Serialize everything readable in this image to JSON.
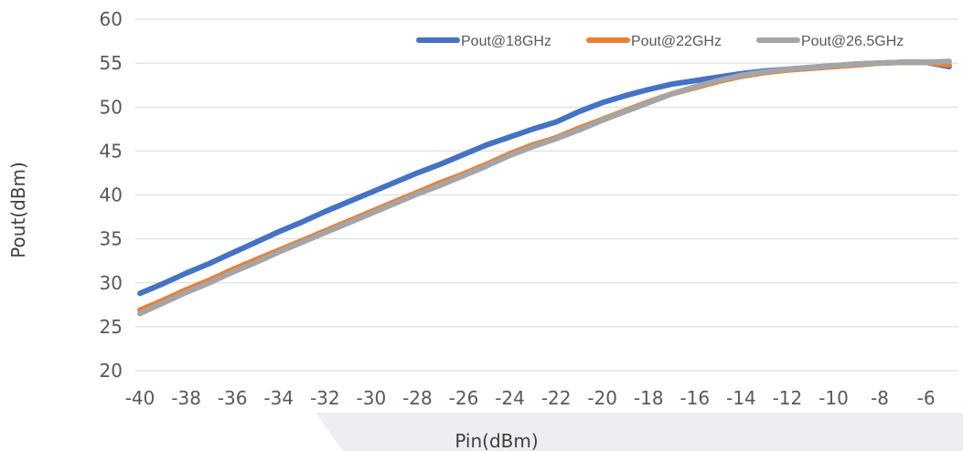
{
  "chart_data": {
    "type": "line",
    "title": "",
    "xlabel": "Pin(dBm)",
    "ylabel": "Pout(dBm)",
    "x": [
      -40,
      -39,
      -38,
      -37,
      -36,
      -35,
      -34,
      -33,
      -32,
      -31,
      -30,
      -29,
      -28,
      -27,
      -26,
      -25,
      -24,
      -23,
      -22,
      -21,
      -20,
      -19,
      -18,
      -17,
      -16,
      -15,
      -14,
      -13,
      -12,
      -11,
      -10,
      -9,
      -8,
      -7,
      -6,
      -5
    ],
    "x_ticks": [
      -40,
      -38,
      -36,
      -34,
      -32,
      -30,
      -28,
      -26,
      -24,
      -22,
      -20,
      -18,
      -16,
      -14,
      -12,
      -10,
      -8,
      -6
    ],
    "y_ticks": [
      20,
      25,
      30,
      35,
      40,
      45,
      50,
      55,
      60
    ],
    "xlim": [
      -40.2,
      -4.6
    ],
    "ylim": [
      20,
      60
    ],
    "grid": "horizontal",
    "legend_position": "top-right",
    "series": [
      {
        "name": "Pout@18GHz",
        "color": "#4472C4",
        "values": [
          28.8,
          29.9,
          31.1,
          32.2,
          33.4,
          34.6,
          35.8,
          36.9,
          38.1,
          39.2,
          40.3,
          41.4,
          42.5,
          43.5,
          44.6,
          45.7,
          46.6,
          47.5,
          48.3,
          49.5,
          50.5,
          51.3,
          52.0,
          52.6,
          53.0,
          53.4,
          53.8,
          54.1,
          54.3,
          54.5,
          54.7,
          54.9,
          55.0,
          55.1,
          55.1,
          54.6
        ]
      },
      {
        "name": "Pout@22GHz",
        "color": "#ED7D31",
        "values": [
          26.9,
          28.0,
          29.2,
          30.3,
          31.5,
          32.6,
          33.7,
          34.8,
          35.9,
          37.0,
          38.1,
          39.2,
          40.3,
          41.4,
          42.4,
          43.5,
          44.7,
          45.7,
          46.5,
          47.6,
          48.6,
          49.6,
          50.6,
          51.5,
          52.2,
          52.9,
          53.5,
          53.9,
          54.2,
          54.4,
          54.6,
          54.8,
          55.0,
          55.1,
          55.1,
          54.8
        ]
      },
      {
        "name": "Pout@26.5GHz",
        "color": "#A5A5A5",
        "values": [
          26.5,
          27.7,
          28.9,
          30.0,
          31.2,
          32.3,
          33.5,
          34.6,
          35.7,
          36.8,
          37.9,
          39.0,
          40.1,
          41.1,
          42.2,
          43.3,
          44.5,
          45.5,
          46.4,
          47.4,
          48.5,
          49.5,
          50.5,
          51.5,
          52.3,
          53.0,
          53.6,
          54.0,
          54.3,
          54.5,
          54.7,
          54.9,
          55.0,
          55.1,
          55.1,
          55.2
        ]
      }
    ]
  }
}
